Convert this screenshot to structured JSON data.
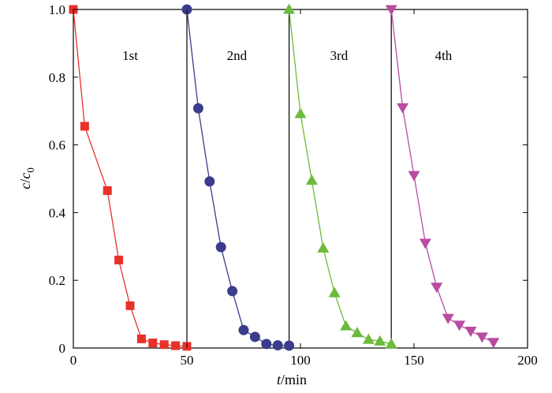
{
  "chart_data": {
    "type": "line",
    "xlabel": {
      "var": "t",
      "unit": "/min"
    },
    "ylabel": {
      "var1": "c",
      "sep": "/",
      "var2": "c",
      "sub": "0"
    },
    "xlim": [
      0,
      200
    ],
    "ylim": [
      0,
      1.0
    ],
    "x_ticks": [
      0,
      50,
      100,
      150,
      200
    ],
    "x_tick_labels": [
      "0",
      "50",
      "100",
      "150",
      "200"
    ],
    "y_ticks": [
      0,
      0.2,
      0.4,
      0.6,
      0.8,
      1.0
    ],
    "y_tick_labels": [
      "0",
      "0.2",
      "0.4",
      "0.6",
      "0.8",
      "1.0"
    ],
    "grid": false,
    "dividers": [
      50,
      95,
      140
    ],
    "run_labels": [
      {
        "text": "1st",
        "x": 25,
        "y": 0.865
      },
      {
        "text": "2nd",
        "x": 72,
        "y": 0.865
      },
      {
        "text": "3rd",
        "x": 117,
        "y": 0.865
      },
      {
        "text": "4th",
        "x": 163,
        "y": 0.865
      }
    ],
    "series": [
      {
        "marker": "square",
        "color": "#e8312a",
        "x": [
          0,
          5,
          15,
          20,
          25,
          30,
          35,
          40,
          45,
          50
        ],
        "y": [
          1.0,
          0.655,
          0.465,
          0.26,
          0.125,
          0.027,
          0.015,
          0.01,
          0.007,
          0.005
        ]
      },
      {
        "marker": "circle",
        "color": "#3c3c8c",
        "x": [
          50,
          55,
          60,
          65,
          70,
          75,
          80,
          85,
          90,
          95
        ],
        "y": [
          1.0,
          0.708,
          0.492,
          0.298,
          0.168,
          0.053,
          0.033,
          0.012,
          0.008,
          0.007
        ]
      },
      {
        "marker": "triangle-up",
        "color": "#6cbb3c",
        "x": [
          95,
          100,
          105,
          110,
          115,
          120,
          125,
          130,
          135,
          140
        ],
        "y": [
          1.0,
          0.692,
          0.495,
          0.295,
          0.163,
          0.065,
          0.045,
          0.025,
          0.02,
          0.012
        ]
      },
      {
        "marker": "triangle-down",
        "color": "#b84ca0",
        "x": [
          140,
          145,
          150,
          155,
          160,
          165,
          170,
          175,
          180,
          185
        ],
        "y": [
          1.0,
          0.71,
          0.51,
          0.31,
          0.18,
          0.088,
          0.068,
          0.05,
          0.033,
          0.017
        ]
      }
    ]
  }
}
